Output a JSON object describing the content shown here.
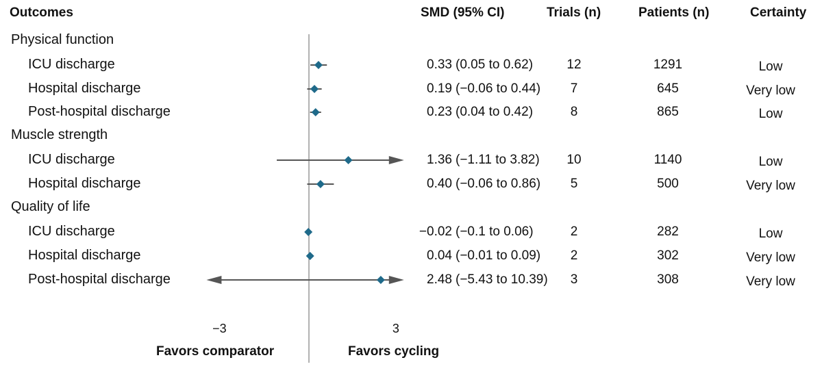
{
  "headers": {
    "outcomes": "Outcomes",
    "smd": "SMD (95% CI)",
    "trials": "Trials (n)",
    "patients": "Patients (n)",
    "certainty": "Certainty"
  },
  "chart_data": {
    "type": "forest",
    "title": "",
    "xlim": [
      -3,
      3
    ],
    "x_ticks": [
      "−3",
      "3"
    ],
    "reference_line": 0,
    "left_label": "Favors comparator",
    "right_label": "Favors cycling",
    "colors": {
      "marker": "#1f6a8a",
      "ci_line": "#555555",
      "ref_line": "#999999"
    },
    "groups": [
      {
        "name": "Physical function",
        "rows": [
          {
            "label": "ICU discharge",
            "smd": 0.33,
            "lo": 0.05,
            "hi": 0.62,
            "smd_text": "0.33",
            "ci_text": "(0.05 to 0.62)",
            "trials": "12",
            "patients": "1291",
            "certainty": "Low"
          },
          {
            "label": "Hospital discharge",
            "smd": 0.19,
            "lo": -0.06,
            "hi": 0.44,
            "smd_text": "0.19",
            "ci_text": "(−0.06 to 0.44)",
            "trials": "7",
            "patients": "645",
            "certainty": "Very low"
          },
          {
            "label": "Post-hospital discharge",
            "smd": 0.23,
            "lo": 0.04,
            "hi": 0.42,
            "smd_text": "0.23",
            "ci_text": "(0.04 to 0.42)",
            "trials": "8",
            "patients": "865",
            "certainty": "Low"
          }
        ]
      },
      {
        "name": "Muscle strength",
        "rows": [
          {
            "label": "ICU discharge",
            "smd": 1.36,
            "lo": -1.11,
            "hi": 3.82,
            "smd_text": "1.36",
            "ci_text": "(−1.11 to 3.82)",
            "trials": "10",
            "patients": "1140",
            "certainty": "Low"
          },
          {
            "label": "Hospital discharge",
            "smd": 0.4,
            "lo": -0.06,
            "hi": 0.86,
            "smd_text": "0.40",
            "ci_text": "(−0.06 to 0.86)",
            "trials": "5",
            "patients": "500",
            "certainty": "Very low"
          }
        ]
      },
      {
        "name": "Quality of life",
        "rows": [
          {
            "label": "ICU discharge",
            "smd": -0.02,
            "lo": -0.1,
            "hi": 0.06,
            "smd_text": "−0.02",
            "ci_text": "(−0.1 to 0.06)",
            "trials": "2",
            "patients": "282",
            "certainty": "Low"
          },
          {
            "label": "Hospital discharge",
            "smd": 0.04,
            "lo": -0.01,
            "hi": 0.09,
            "smd_text": "0.04",
            "ci_text": "(−0.01 to 0.09)",
            "trials": "2",
            "patients": "302",
            "certainty": "Very low"
          },
          {
            "label": "Post-hospital discharge",
            "smd": 2.48,
            "lo": -5.43,
            "hi": 10.39,
            "smd_text": "2.48",
            "ci_text": "(−5.43 to 10.39)",
            "trials": "3",
            "patients": "308",
            "certainty": "Very low"
          }
        ]
      }
    ]
  }
}
